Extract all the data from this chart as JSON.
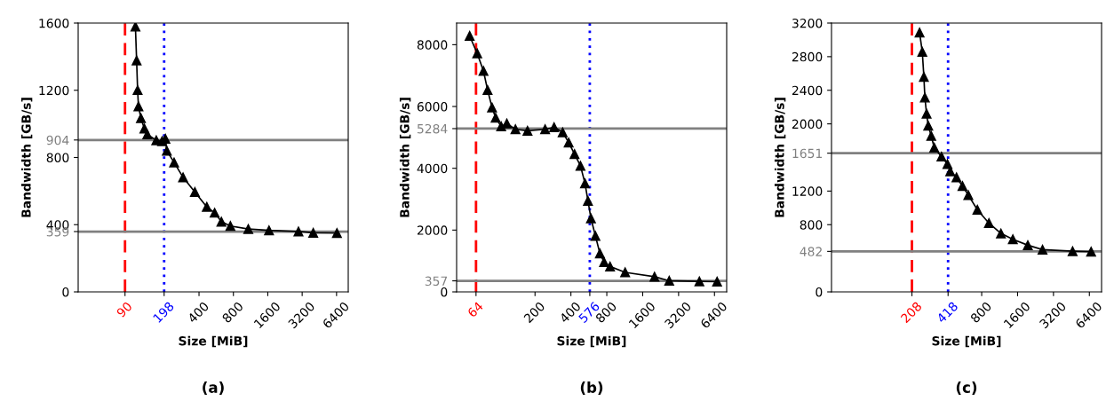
{
  "chart_data": [
    {
      "type": "line",
      "title": "(a)",
      "xlabel": "Size [MiB]",
      "ylabel": "Bandwidth [GB/s]",
      "log": "x",
      "marker": "triangle",
      "line_style": "solid",
      "xlim": [
        35,
        8100
      ],
      "xticks": [
        400,
        800,
        1600,
        3200,
        6400
      ],
      "ylim": [
        0,
        1600
      ],
      "yticks": [
        0,
        400,
        800,
        1200,
        1600
      ],
      "series": [
        {
          "color": "#000000",
          "x": [
            111,
            113.7,
            116,
            118,
            124,
            133,
            141,
            169,
            190,
            203,
            209,
            242,
            290,
            368,
            468,
            548,
            628,
            753,
            1080,
            1640,
            2970,
            4000,
            6450
          ],
          "values": [
            1579,
            1377,
            1201,
            1104,
            1034,
            972,
            937,
            902,
            897,
            911,
            840,
            770,
            682,
            594,
            506,
            471,
            418,
            392,
            374,
            366,
            360,
            352,
            350
          ]
        }
      ],
      "ref_lines": [
        {
          "axis": "x",
          "value": 90,
          "label": "90",
          "color": "#ff0000",
          "line_style": "dashed"
        },
        {
          "axis": "x",
          "value": 198,
          "label": "198",
          "color": "#0000ff",
          "line_style": "dotted"
        },
        {
          "axis": "y",
          "value": 904,
          "label": "904",
          "color": "#808080",
          "line_style": "solid"
        },
        {
          "axis": "y",
          "value": 359,
          "label": "359",
          "color": "#808080",
          "line_style": "solid"
        }
      ]
    },
    {
      "type": "line",
      "title": "(b)",
      "xlabel": "Size [MiB]",
      "ylabel": "Bandwidth [GB/s]",
      "log": "x",
      "marker": "triangle",
      "line_style": "solid",
      "xlim": [
        44,
        8100
      ],
      "xticks": [
        200,
        400,
        800,
        1600,
        3200,
        6400
      ],
      "ylim": [
        0,
        8700
      ],
      "yticks": [
        0,
        2000,
        4000,
        6000,
        8000
      ],
      "series": [
        {
          "color": "#000000",
          "x": [
            56.6,
            65.5,
            73.9,
            80,
            87.2,
            93.5,
            104,
            116,
            137,
            173,
            243,
            289,
            341,
            383,
            429,
            481,
            525,
            556,
            589,
            642,
            700,
            759,
            852,
            1140,
            2010,
            2670,
            4780,
            6730
          ],
          "values": [
            8283,
            7717,
            7150,
            6536,
            5969,
            5639,
            5355,
            5450,
            5261,
            5214,
            5261,
            5327,
            5166,
            4836,
            4458,
            4080,
            3514,
            2947,
            2380,
            1813,
            1247,
            963,
            822,
            633,
            491,
            360,
            340,
            330
          ]
        }
      ],
      "ref_lines": [
        {
          "axis": "x",
          "value": 64,
          "label": "64",
          "color": "#ff0000",
          "line_style": "dashed"
        },
        {
          "axis": "x",
          "value": 576,
          "label": "576",
          "color": "#0000ff",
          "line_style": "dotted"
        },
        {
          "axis": "y",
          "value": 5284,
          "label": "5284",
          "color": "#808080",
          "line_style": "solid"
        },
        {
          "axis": "y",
          "value": 357,
          "label": "357",
          "color": "#808080",
          "line_style": "solid"
        }
      ]
    },
    {
      "type": "line",
      "title": "(c)",
      "xlabel": "Size [MiB]",
      "ylabel": "Bandwidth [GB/s]",
      "log": "x",
      "marker": "triangle",
      "line_style": "solid",
      "xlim": [
        44,
        8100
      ],
      "xticks": [
        800,
        1600,
        3200,
        6400
      ],
      "ylim": [
        0,
        3200
      ],
      "yticks": [
        0,
        800,
        1200,
        2000,
        2400,
        2800,
        3200
      ],
      "series": [
        {
          "color": "#000000",
          "x": [
            241,
            254,
            262,
            267,
            276,
            285,
            302,
            320,
            368,
            413,
            436,
            492,
            552,
            618,
            736,
            920,
            1160,
            1460,
            1950,
            2590,
            4630,
            6620
          ],
          "values": [
            3087,
            2858,
            2560,
            2313,
            2120,
            1979,
            1856,
            1716,
            1610,
            1522,
            1435,
            1364,
            1259,
            1153,
            977,
            819,
            696,
            626,
            556,
            503,
            485,
            478
          ]
        }
      ],
      "ref_lines": [
        {
          "axis": "x",
          "value": 208,
          "label": "208",
          "color": "#ff0000",
          "line_style": "dashed"
        },
        {
          "axis": "x",
          "value": 418,
          "label": "418",
          "color": "#0000ff",
          "line_style": "dotted"
        },
        {
          "axis": "y",
          "value": 1651,
          "label": "1651",
          "color": "#808080",
          "line_style": "solid"
        },
        {
          "axis": "y",
          "value": 482,
          "label": "482",
          "color": "#808080",
          "line_style": "solid"
        }
      ]
    }
  ]
}
